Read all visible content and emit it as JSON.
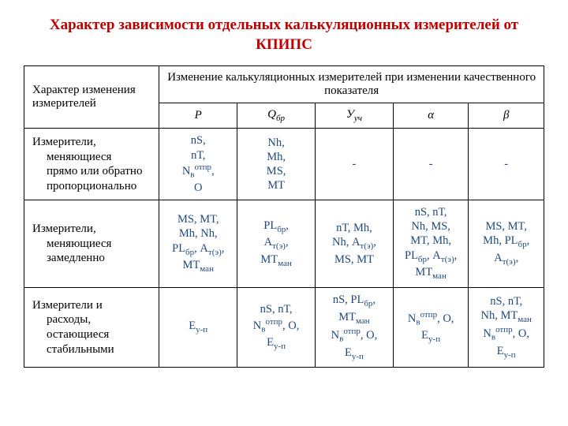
{
  "title": "Характер зависимости отдельных калькуляционных измерителей от КПИПС",
  "headers": {
    "left": "Характер изменения измерителей",
    "top": "Изменение калькуляционных измерителей при изменении качественного показателя",
    "cols": {
      "c1": "Р",
      "c2": "Q",
      "c2sub": "бр",
      "c3": "У",
      "c3sub": "уч",
      "c4": "α",
      "c5": "β"
    }
  },
  "rows": {
    "r1": {
      "label_l1": "Измерители,",
      "label_l2": "меняющиеся",
      "label_l3": "прямо или обратно",
      "label_l4": "пропорционально",
      "c1_html": "nS,<br>nТ,<br>N<sub>в</sub><sup>отпр</sup>,<br>O",
      "c2_html": "Nh,<br>Mh,<br>MS,<br>MT",
      "c3_html": "-",
      "c4_html": "-",
      "c5_html": "-"
    },
    "r2": {
      "label_l1": "Измерители,",
      "label_l2": "меняющиеся",
      "label_l3": "замедленно",
      "c1_html": "MS, MT,<br>Mh, Nh,<br>PL<sub>бр</sub>, А<sub>т(э)</sub>,<br>MT<sub>ман</sub>",
      "c2_html": "PL<sub>бр</sub>,<br>А<sub>т(э)</sub>,<br>MT<sub>ман</sub>",
      "c3_html": "nТ, Mh,<br>Nh, А<sub>т(э)</sub>,<br>MS, MT",
      "c4_html": "nS, nТ,<br>Nh, MS,<br>MT, Mh,<br>PL<sub>бр</sub>, А<sub>т(э)</sub>,<br>MT<sub>ман</sub>",
      "c5_html": "MS, MT,<br>Mh, PL<sub>бр</sub>,<br>А<sub>т(э)</sub>,"
    },
    "r3": {
      "label_l1": "Измерители и",
      "label_l2": "расходы,",
      "label_l3": "остающиеся",
      "label_l4": "стабильными",
      "c1_html": "Е<sub>у-п</sub>",
      "c2_html": "nS, nТ,<br>N<sub>в</sub><sup>отпр</sup>, O,<br>Е<sub>у-п</sub>",
      "c3_html": "nS, PL<sub>бр</sub>,<br>MT<sub>ман</sub><br>N<sub>в</sub><sup>отпр</sup>, O,<br>Е<sub>у-п</sub>",
      "c4_html": "N<sub>в</sub><sup>отпр</sup>, O,<br>Е<sub>у-п</sub>",
      "c5_html": "nS, nТ,<br>Nh, MT<sub>ман</sub><br>N<sub>в</sub><sup>отпр</sup>, O,<br>Е<sub>у-п</sub>"
    }
  },
  "style": {
    "title_color": "#c00000",
    "data_color": "#1f497d",
    "border_color": "#000000",
    "background": "#ffffff",
    "title_fontsize": 19,
    "body_fontsize": 15,
    "data_fontsize": 14.5,
    "col_widths_pct": [
      26,
      15,
      15,
      15,
      14.5,
      14.5
    ]
  }
}
